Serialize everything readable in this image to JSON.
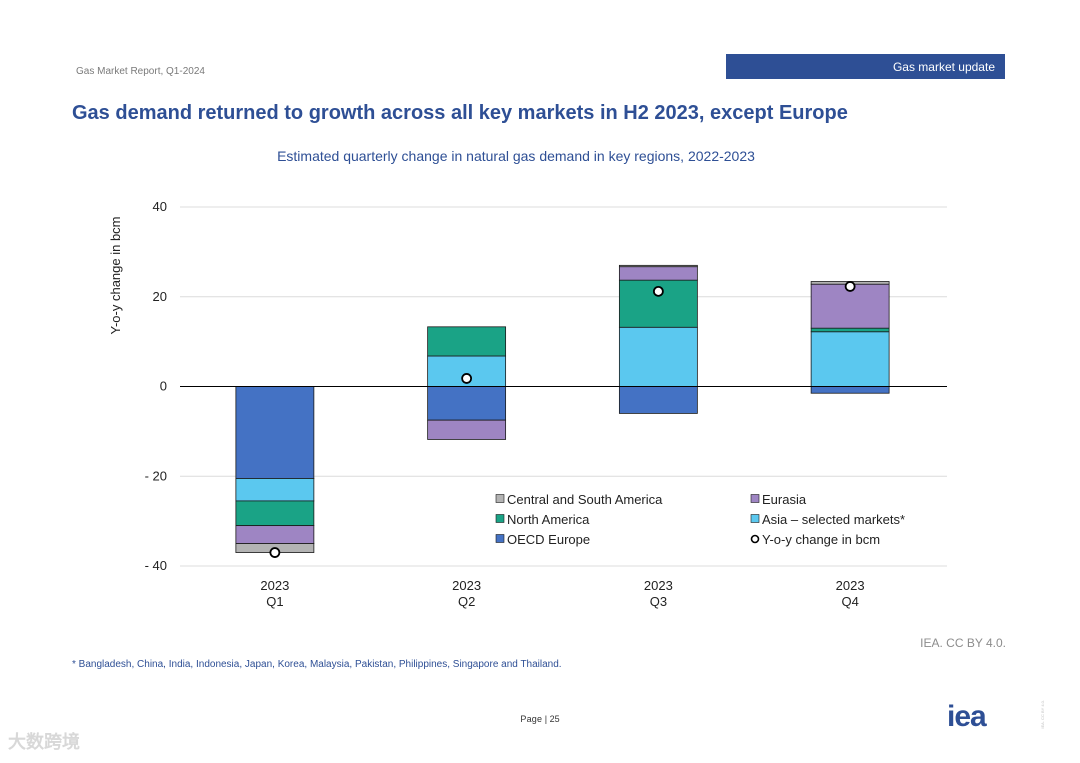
{
  "header": {
    "report_name": "Gas Market Report, Q1-2024",
    "section_label": "Gas market update",
    "accent_color": "#2e4f95"
  },
  "slide_title": "Gas demand returned to growth across all key markets in H2 2023, except Europe",
  "chart_data": {
    "type": "bar",
    "stacked": true,
    "title": "Estimated quarterly change in natural gas demand in key regions, 2022-2023",
    "ylabel": "Y-o-y change in bcm",
    "xlabel": "",
    "ylim": [
      -40,
      40
    ],
    "yticks": [
      40,
      20,
      0,
      -20,
      -40
    ],
    "ytick_labels": [
      "40",
      "20",
      "0",
      "- 20",
      "- 40"
    ],
    "grid": true,
    "categories": [
      {
        "year": "2023",
        "quarter": "Q1"
      },
      {
        "year": "2023",
        "quarter": "Q2"
      },
      {
        "year": "2023",
        "quarter": "Q3"
      },
      {
        "year": "2023",
        "quarter": "Q4"
      }
    ],
    "series": [
      {
        "name": "OECD Europe",
        "color": "#4472c4",
        "values": [
          -20.5,
          -7.5,
          -6,
          -1.5
        ]
      },
      {
        "name": "Asia – selected markets*",
        "color": "#5bc8ef",
        "values": [
          -5,
          6.8,
          13.2,
          12.2
        ]
      },
      {
        "name": "North America",
        "color": "#1aa386",
        "values": [
          -5.5,
          6.5,
          10.5,
          0.8
        ]
      },
      {
        "name": "Eurasia",
        "color": "#9e85c3",
        "values": [
          -4,
          -4.3,
          3,
          9.8
        ]
      },
      {
        "name": "Central and South America",
        "color": "#b3b3b3",
        "values": [
          -2,
          0,
          0.3,
          0.6
        ]
      }
    ],
    "line_series": {
      "name": "Y-o-y change in bcm",
      "values": [
        -37,
        1.8,
        21.2,
        22.3
      ]
    },
    "legend": {
      "placement": "bottom-right",
      "order": [
        "Central and South America",
        "Eurasia",
        "North America",
        "Asia – selected markets*",
        "OECD Europe",
        "Y-o-y change in bcm"
      ]
    }
  },
  "credit": "IEA. CC BY 4.0.",
  "footnote": "* Bangladesh, China, India, Indonesia, Japan, Korea, Malaysia, Pakistan, Philippines, Singapore and Thailand.",
  "page": {
    "prefix": "Page",
    "number": "25"
  },
  "logo_text": "iea",
  "side_license": "IEA. CC BY 4.0.",
  "watermark": "大数跨境"
}
